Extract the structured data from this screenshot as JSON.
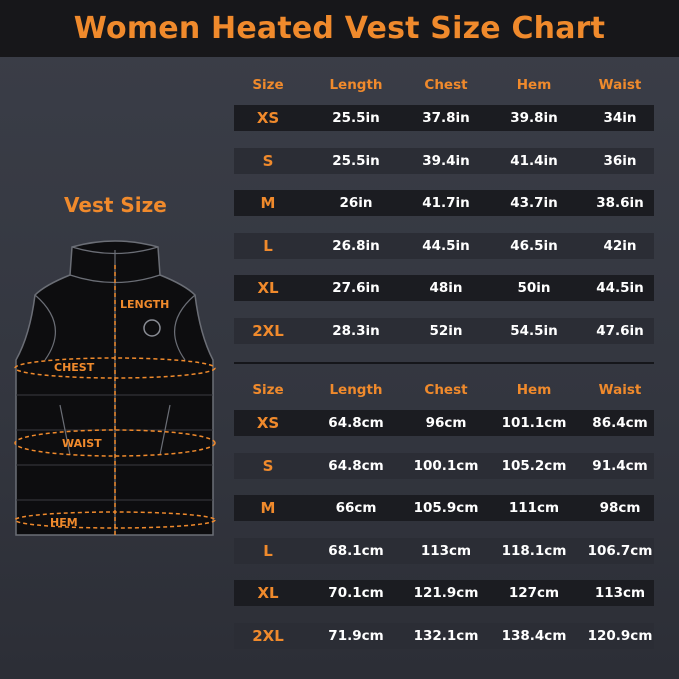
{
  "title": "Women Heated Vest Size Chart",
  "vest_label": "Vest Size",
  "diagram_labels": {
    "length": "LENGTH",
    "chest": "CHEST",
    "waist": "WAIST",
    "hem": "HEM"
  },
  "colors": {
    "accent": "#f08a2c",
    "title_bar": "#17171a",
    "row_dark": "#1b1c21",
    "row_light": "#2b2d35"
  },
  "inch_table": {
    "headers": [
      "Size",
      "Length",
      "Chest",
      "Hem",
      "Waist"
    ],
    "rows": [
      [
        "XS",
        "25.5in",
        "37.8in",
        "39.8in",
        "34in"
      ],
      [
        "S",
        "25.5in",
        "39.4in",
        "41.4in",
        "36in"
      ],
      [
        "M",
        "26in",
        "41.7in",
        "43.7in",
        "38.6in"
      ],
      [
        "L",
        "26.8in",
        "44.5in",
        "46.5in",
        "42in"
      ],
      [
        "XL",
        "27.6in",
        "48in",
        "50in",
        "44.5in"
      ],
      [
        "2XL",
        "28.3in",
        "52in",
        "54.5in",
        "47.6in"
      ]
    ]
  },
  "cm_table": {
    "headers": [
      "Size",
      "Length",
      "Chest",
      "Hem",
      "Waist"
    ],
    "rows": [
      [
        "XS",
        "64.8cm",
        "96cm",
        "101.1cm",
        "86.4cm"
      ],
      [
        "S",
        "64.8cm",
        "100.1cm",
        "105.2cm",
        "91.4cm"
      ],
      [
        "M",
        "66cm",
        "105.9cm",
        "111cm",
        "98cm"
      ],
      [
        "L",
        "68.1cm",
        "113cm",
        "118.1cm",
        "106.7cm"
      ],
      [
        "XL",
        "70.1cm",
        "121.9cm",
        "127cm",
        "113cm"
      ],
      [
        "2XL",
        "71.9cm",
        "132.1cm",
        "138.4cm",
        "120.9cm"
      ]
    ]
  }
}
